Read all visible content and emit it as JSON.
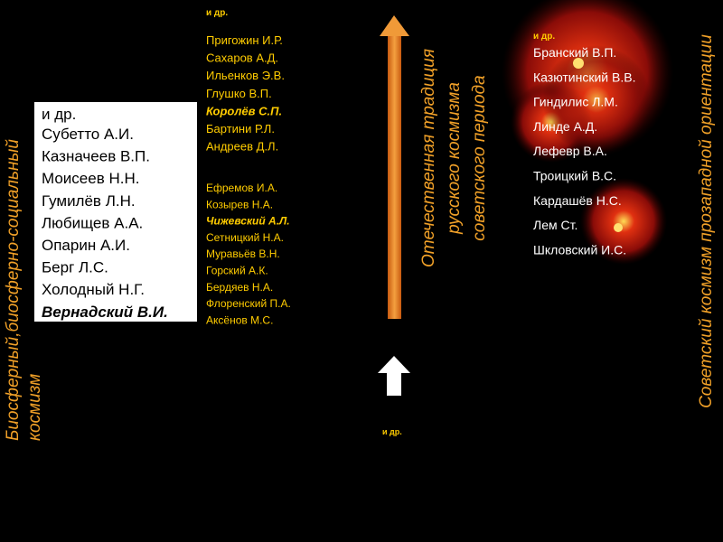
{
  "left_title": {
    "lines": [
      "Биосферный,биосферно-социальный",
      "космизм"
    ]
  },
  "box": {
    "note": "и др.",
    "items": [
      "Субетто А.И.",
      "Казначеев В.П.",
      "Моисеев Н.Н.",
      "Гумилёв Л.Н.",
      "Любищев А.А.",
      "Опарин А.И.",
      "Берг Л.С.",
      "Холодный Н.Г.",
      "Вернадский В.И."
    ]
  },
  "middle": {
    "note_top": "и др.",
    "group1": [
      "Пригожин И.Р.",
      "Сахаров А.Д.",
      "Ильенков Э.В.",
      "Глушко В.П.",
      "Королёв С.П.",
      "Бартини Р.Л.",
      "Андреев Д.Л."
    ],
    "group2": [
      "Ефремов И.А.",
      "Козырев Н.А.",
      "Чижевский А.Л.",
      "Сетницкий Н.А.",
      "Муравьёв В.Н.",
      "Горский А.К.",
      "Бердяев Н.А.",
      "Флоренский П.А.",
      "Аксёнов М.С."
    ],
    "note_bottom": "и др."
  },
  "arrow_title": {
    "lines": [
      "Отечественная традиция",
      "русского космизма",
      "советского периода"
    ]
  },
  "right": {
    "note": "и др.",
    "items": [
      "Бранский В.П.",
      "Казютинский В.В.",
      "Гиндилис Л.М.",
      "Линде А.Д.",
      "Лефевр В.А.",
      "Троицкий В.С.",
      "Кардашёв Н.С.",
      "Лем Ст.",
      "Шкловский И.С."
    ]
  },
  "right_title": "Советский космизм прозападной ориентации"
}
